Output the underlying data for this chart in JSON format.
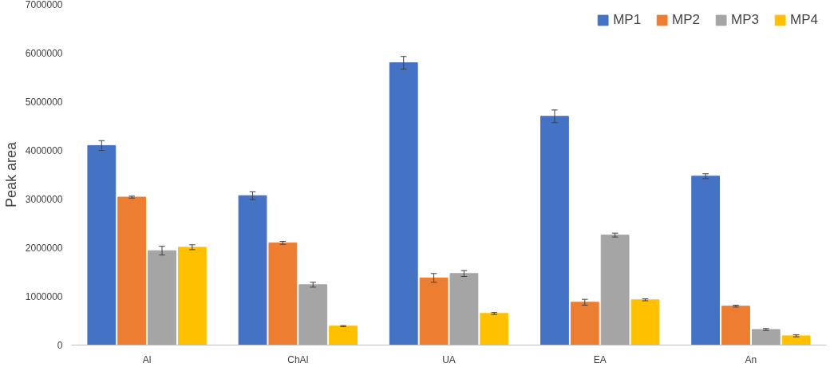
{
  "chart_data": {
    "type": "bar",
    "ylabel": "Peak area",
    "categories": [
      "Al",
      "ChAl",
      "UA",
      "EA",
      "An"
    ],
    "series": [
      {
        "name": "MP1",
        "color": "#4472c4",
        "values": [
          4100000,
          3070000,
          5800000,
          4700000,
          3470000
        ],
        "errors": [
          100000,
          80000,
          130000,
          130000,
          50000
        ]
      },
      {
        "name": "MP2",
        "color": "#ed7d31",
        "values": [
          3040000,
          2100000,
          1380000,
          880000,
          800000
        ],
        "errors": [
          20000,
          30000,
          90000,
          60000,
          20000
        ]
      },
      {
        "name": "MP3",
        "color": "#a5a5a5",
        "values": [
          1940000,
          1240000,
          1470000,
          2260000,
          320000
        ],
        "errors": [
          90000,
          50000,
          60000,
          40000,
          20000
        ]
      },
      {
        "name": "MP4",
        "color": "#ffc000",
        "values": [
          2010000,
          390000,
          650000,
          930000,
          190000
        ],
        "errors": [
          50000,
          10000,
          20000,
          20000,
          20000
        ]
      }
    ],
    "ylim": [
      0,
      7000000
    ],
    "yticks": [
      0,
      1000000,
      2000000,
      3000000,
      4000000,
      5000000,
      6000000,
      7000000
    ],
    "grid": false,
    "legend": "top right"
  }
}
